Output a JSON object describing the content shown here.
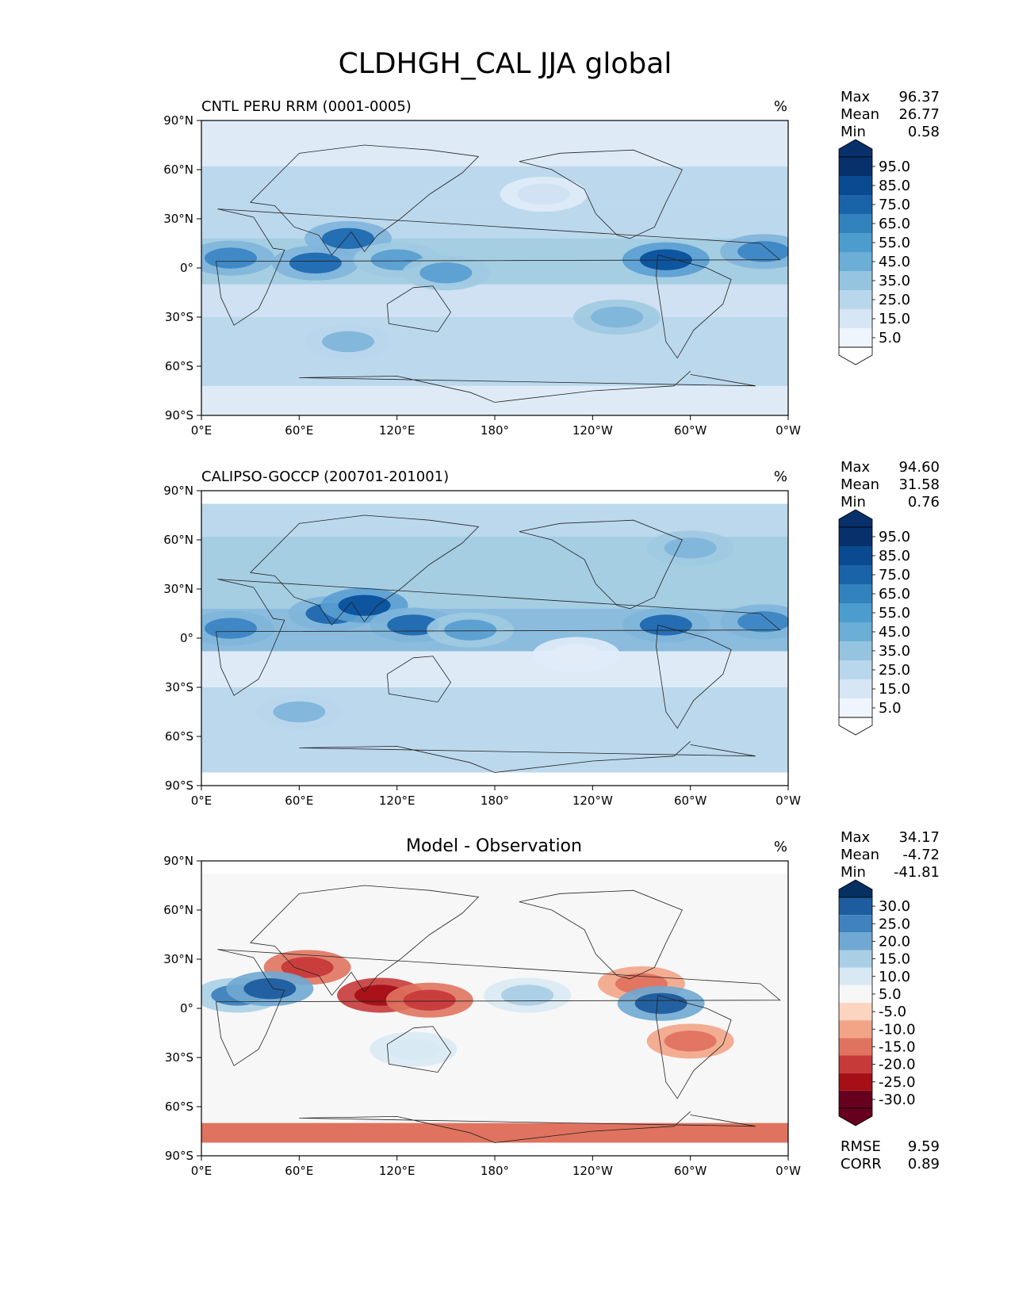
{
  "figure_title": "CLDHGH_CAL JJA global",
  "chart_data": [
    {
      "type": "heatmap",
      "panel": "test",
      "title": "CNTL PERU RRM (0001-0005)",
      "units": "%",
      "stats": [
        {
          "label": "Max",
          "value": "96.37"
        },
        {
          "label": "Mean",
          "value": "26.77"
        },
        {
          "label": "Min",
          "value": "0.58"
        }
      ],
      "colorbar": {
        "scheme": "blues",
        "labels": [
          "95.0",
          "85.0",
          "75.0",
          "65.0",
          "55.0",
          "45.0",
          "35.0",
          "25.0",
          "15.0",
          "5.0"
        ],
        "extend": "both"
      },
      "x_ticks": [
        "0°E",
        "60°E",
        "120°E",
        "180°",
        "120°W",
        "60°W",
        "0°W"
      ],
      "y_ticks": [
        "90°N",
        "60°N",
        "30°N",
        "0°",
        "30°S",
        "60°S",
        "90°S"
      ],
      "xlim": [
        0,
        360
      ],
      "ylim": [
        -90,
        90
      ],
      "features": [
        {
          "lon": 18,
          "lat": 6,
          "v": 70
        },
        {
          "lon": 70,
          "lat": 3,
          "v": 75
        },
        {
          "lon": 90,
          "lat": 18,
          "v": 75
        },
        {
          "lon": 120,
          "lat": 5,
          "v": 62
        },
        {
          "lon": 150,
          "lat": -3,
          "v": 55
        },
        {
          "lon": 210,
          "lat": 45,
          "v": 18
        },
        {
          "lon": 285,
          "lat": 5,
          "v": 85
        },
        {
          "lon": 345,
          "lat": 10,
          "v": 65
        },
        {
          "lon": 255,
          "lat": -30,
          "v": 50
        },
        {
          "lon": 90,
          "lat": -45,
          "v": 45
        }
      ]
    },
    {
      "type": "heatmap",
      "panel": "reference",
      "title": "CALIPSO-GOCCP (200701-201001)",
      "units": "%",
      "stats": [
        {
          "label": "Max",
          "value": "94.60"
        },
        {
          "label": "Mean",
          "value": "31.58"
        },
        {
          "label": "Min",
          "value": "0.76"
        }
      ],
      "colorbar": {
        "scheme": "blues",
        "labels": [
          "95.0",
          "85.0",
          "75.0",
          "65.0",
          "55.0",
          "45.0",
          "35.0",
          "25.0",
          "15.0",
          "5.0"
        ],
        "extend": "both"
      },
      "x_ticks": [
        "0°E",
        "60°E",
        "120°E",
        "180°",
        "120°W",
        "60°W",
        "0°W"
      ],
      "y_ticks": [
        "90°N",
        "60°N",
        "30°N",
        "0°",
        "30°S",
        "60°S",
        "90°S"
      ],
      "xlim": [
        0,
        360
      ],
      "ylim": [
        -90,
        90
      ],
      "features": [
        {
          "lon": 18,
          "lat": 6,
          "v": 70
        },
        {
          "lon": 80,
          "lat": 15,
          "v": 78
        },
        {
          "lon": 100,
          "lat": 20,
          "v": 85
        },
        {
          "lon": 130,
          "lat": 8,
          "v": 75
        },
        {
          "lon": 165,
          "lat": 5,
          "v": 60
        },
        {
          "lon": 285,
          "lat": 8,
          "v": 75
        },
        {
          "lon": 345,
          "lat": 10,
          "v": 65
        },
        {
          "lon": 230,
          "lat": -10,
          "v": 8
        },
        {
          "lon": 60,
          "lat": -45,
          "v": 45
        },
        {
          "lon": 300,
          "lat": 55,
          "v": 50
        }
      ]
    },
    {
      "type": "heatmap",
      "panel": "diff",
      "title": "Model - Observation",
      "units": "%",
      "stats": [
        {
          "label": "Max",
          "value": "34.17"
        },
        {
          "label": "Mean",
          "value": "-4.72"
        },
        {
          "label": "Min",
          "value": "-41.81"
        }
      ],
      "extra_stats": [
        {
          "label": "RMSE",
          "value": "9.59"
        },
        {
          "label": "CORR",
          "value": "0.89"
        }
      ],
      "colorbar": {
        "scheme": "rdbu",
        "labels": [
          "30.0",
          "25.0",
          "20.0",
          "15.0",
          "10.0",
          "5.0",
          "-5.0",
          "-10.0",
          "-15.0",
          "-20.0",
          "-25.0",
          "-30.0"
        ],
        "extend": "both"
      },
      "x_ticks": [
        "0°E",
        "60°E",
        "120°E",
        "180°",
        "120°W",
        "60°W",
        "0°W"
      ],
      "y_ticks": [
        "90°N",
        "60°N",
        "30°N",
        "0°",
        "30°S",
        "60°S",
        "90°S"
      ],
      "xlim": [
        0,
        360
      ],
      "ylim": [
        -90,
        90
      ],
      "features": [
        {
          "lon": 110,
          "lat": 8,
          "v": -30
        },
        {
          "lon": 140,
          "lat": 5,
          "v": -25
        },
        {
          "lon": 65,
          "lat": 25,
          "v": -25
        },
        {
          "lon": 300,
          "lat": -20,
          "v": -20
        },
        {
          "lon": 270,
          "lat": 15,
          "v": -18
        },
        {
          "lon": 22,
          "lat": 8,
          "v": 20
        },
        {
          "lon": 42,
          "lat": 12,
          "v": 28
        },
        {
          "lon": 282,
          "lat": 3,
          "v": 25
        },
        {
          "lon": 200,
          "lat": 8,
          "v": 12
        },
        {
          "lon": 130,
          "lat": -25,
          "v": 8
        }
      ]
    }
  ]
}
